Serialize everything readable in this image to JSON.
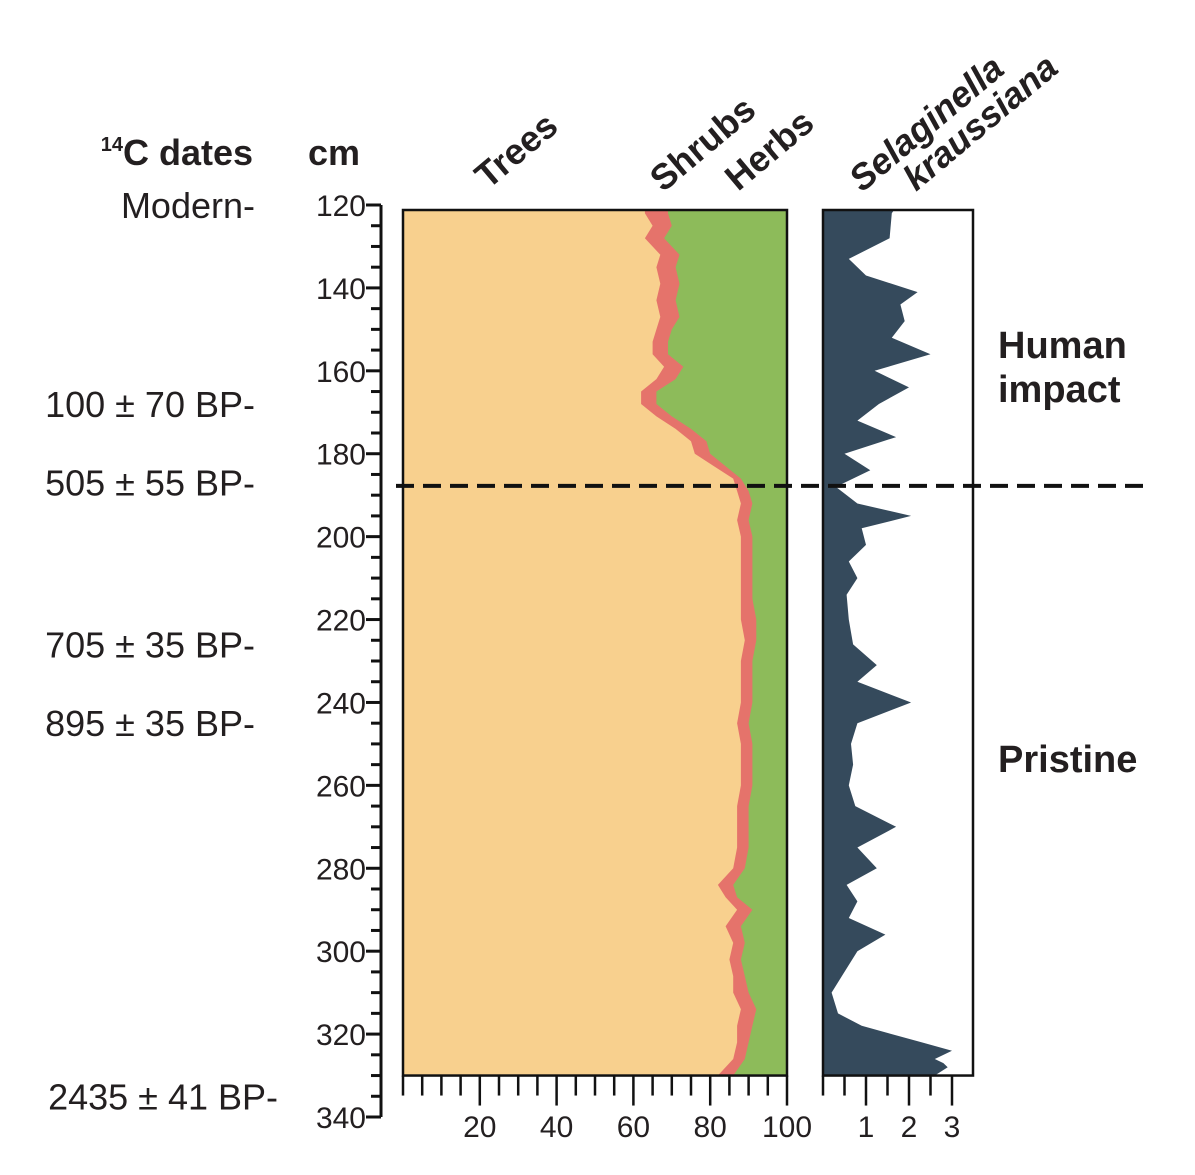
{
  "headers": {
    "dates_label": "C dates",
    "dates_superscript": "14",
    "depth_label": "cm"
  },
  "chart_data": [
    {
      "type": "area",
      "stacked": true,
      "orientation": "vertical-depth",
      "y_axis": {
        "label": "cm",
        "range": [
          120,
          340
        ],
        "inverted": true,
        "ticks": [
          120,
          140,
          160,
          180,
          200,
          220,
          240,
          260,
          280,
          300,
          320,
          340
        ]
      },
      "x_axis": {
        "range": [
          0,
          100
        ],
        "ticks": [
          20,
          40,
          60,
          80,
          100
        ]
      },
      "series": [
        {
          "name": "Trees",
          "color": "#f8d08e"
        },
        {
          "name": "Shrubs",
          "color": "#e5736b"
        },
        {
          "name": "Herbs",
          "color": "#8dbb5a"
        }
      ],
      "depth": [
        122,
        125,
        128,
        132,
        135,
        139,
        143,
        147,
        150,
        153,
        156,
        159,
        162,
        165,
        168,
        171,
        174,
        177,
        180,
        183,
        186,
        189,
        192,
        196,
        200,
        205,
        210,
        215,
        220,
        225,
        230,
        235,
        240,
        245,
        250,
        255,
        260,
        265,
        270,
        275,
        280,
        284,
        287,
        290,
        294,
        298,
        302,
        306,
        310,
        314,
        318,
        322,
        326,
        330
      ],
      "trees_cum": [
        63,
        65,
        63,
        67,
        66,
        67,
        66,
        67,
        66,
        65,
        65,
        68,
        66,
        62,
        62,
        66,
        71,
        75,
        76,
        81,
        86,
        87,
        88,
        87,
        88,
        88,
        88,
        88,
        88,
        89,
        88,
        88,
        88,
        87,
        88,
        88,
        88,
        87,
        87,
        87,
        86,
        82,
        84,
        87,
        84,
        86,
        85,
        86,
        86,
        88,
        87,
        87,
        86,
        82
      ],
      "shrubs_cum": [
        69,
        70,
        68,
        72,
        71,
        72,
        71,
        72,
        70,
        69,
        69,
        73,
        71,
        66,
        66,
        70,
        75,
        79,
        80,
        84,
        88,
        90,
        91,
        90,
        91,
        91,
        91,
        91,
        92,
        92,
        91,
        91,
        91,
        90,
        91,
        91,
        91,
        90,
        90,
        90,
        89,
        86,
        87,
        91,
        88,
        89,
        88,
        89,
        90,
        92,
        91,
        90,
        89,
        86
      ]
    },
    {
      "type": "area",
      "orientation": "vertical-depth",
      "title_lines": [
        "Selaginella",
        "kraussiana"
      ],
      "color": "#354a5c",
      "x_axis": {
        "range": [
          0,
          3.5
        ],
        "ticks": [
          1,
          2,
          3
        ]
      },
      "depth": [
        120,
        122,
        128,
        133,
        137,
        141,
        144,
        148,
        152,
        156,
        160,
        164,
        168,
        172,
        176,
        180,
        184,
        188,
        192,
        195,
        198,
        202,
        206,
        210,
        214,
        220,
        226,
        231,
        235,
        240,
        245,
        250,
        255,
        260,
        265,
        270,
        275,
        280,
        284,
        288,
        292,
        296,
        300,
        305,
        310,
        315,
        318,
        322,
        324,
        326,
        327,
        328,
        330
      ],
      "values": [
        1.65,
        1.6,
        1.55,
        0.6,
        1.0,
        2.2,
        1.8,
        1.9,
        1.6,
        2.5,
        1.2,
        2.0,
        1.3,
        0.8,
        1.7,
        0.5,
        1.1,
        0.3,
        0.8,
        2.05,
        0.9,
        1.0,
        0.6,
        0.8,
        0.55,
        0.6,
        0.7,
        1.25,
        0.8,
        2.05,
        0.8,
        0.65,
        0.7,
        0.6,
        0.75,
        1.7,
        0.8,
        1.25,
        0.55,
        0.8,
        0.6,
        1.45,
        0.8,
        0.5,
        0.2,
        0.35,
        0.9,
        2.3,
        3.0,
        2.6,
        2.8,
        2.9,
        2.6
      ]
    }
  ],
  "date_labels": [
    {
      "text": "Modern-",
      "depth": 120
    },
    {
      "text": "100 ± 70 BP-",
      "depth": 168
    },
    {
      "text": "505 ± 55 BP-",
      "depth": 187
    },
    {
      "text": "705 ± 35 BP-",
      "depth": 226
    },
    {
      "text": "895 ± 35 BP-",
      "depth": 245
    },
    {
      "text": "2435 ± 41 BP-",
      "depth": 335
    }
  ],
  "zones": [
    {
      "lines": [
        "Human",
        "impact"
      ]
    },
    {
      "lines": [
        "Pristine"
      ]
    }
  ],
  "boundary_depth": 188
}
